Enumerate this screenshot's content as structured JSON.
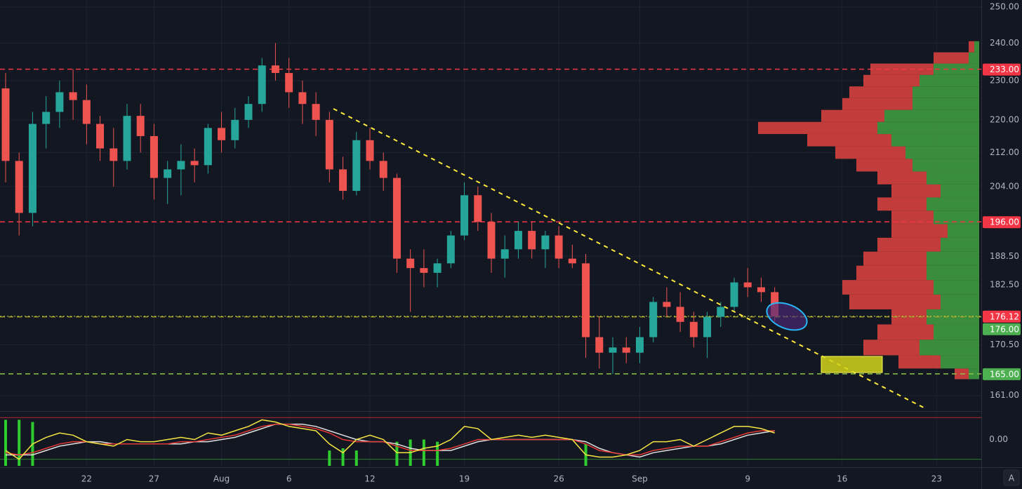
{
  "chart_data": {
    "type": "candlestick",
    "log_scale": true,
    "grid": true,
    "up_color": "#26a69a",
    "down_color": "#ef5350",
    "x": [
      "Jul 16",
      "Jul 17",
      "Jul 18",
      "Jul 19",
      "Jul 20",
      "Jul 21",
      "Jul 22",
      "Jul 23",
      "Jul 24",
      "Jul 25",
      "Jul 26",
      "Jul 27",
      "Jul 28",
      "Jul 29",
      "Jul 30",
      "Jul 31",
      "Aug 1",
      "Aug 2",
      "Aug 3",
      "Aug 4",
      "Aug 5",
      "Aug 6",
      "Aug 7",
      "Aug 8",
      "Aug 9",
      "Aug 10",
      "Aug 11",
      "Aug 12",
      "Aug 13",
      "Aug 14",
      "Aug 15",
      "Aug 16",
      "Aug 17",
      "Aug 18",
      "Aug 19",
      "Aug 20",
      "Aug 21",
      "Aug 22",
      "Aug 23",
      "Aug 24",
      "Aug 25",
      "Aug 26",
      "Aug 27",
      "Aug 28",
      "Aug 29",
      "Aug 30",
      "Aug 31",
      "Sep 1",
      "Sep 2",
      "Sep 3",
      "Sep 4",
      "Sep 5",
      "Sep 6",
      "Sep 7",
      "Sep 8",
      "Sep 9",
      "Sep 10",
      "Sep 11"
    ],
    "open": [
      228,
      210,
      198,
      219,
      222,
      227,
      225,
      219,
      213,
      210,
      221,
      216,
      206,
      208,
      210,
      209,
      218,
      215,
      220,
      224,
      234,
      232,
      227,
      224,
      220,
      208,
      203,
      215,
      210,
      206,
      188,
      186,
      185,
      187,
      193,
      202,
      196,
      188,
      190,
      194,
      190,
      193,
      188,
      187,
      172,
      169,
      170,
      169,
      172,
      179,
      178,
      175,
      172,
      176,
      178,
      183,
      182,
      181
    ],
    "high": [
      232,
      212,
      222,
      226,
      230,
      233,
      229,
      221,
      218,
      224,
      224,
      219,
      210,
      214,
      213,
      219,
      222,
      223,
      226,
      236,
      240,
      236,
      230,
      227,
      222,
      211,
      217,
      218,
      212,
      207,
      190,
      190,
      188,
      194,
      205,
      204,
      198,
      193,
      196,
      196,
      194,
      195,
      191,
      189,
      176,
      172,
      172,
      174,
      180,
      182,
      181,
      177,
      177,
      179,
      184,
      186,
      184,
      182
    ],
    "low": [
      205,
      193,
      195,
      213,
      218,
      220,
      214,
      210,
      204,
      208,
      212,
      201,
      200,
      202,
      205,
      207,
      212,
      213,
      218,
      222,
      230,
      223,
      219,
      216,
      205,
      201,
      202,
      208,
      203,
      185,
      177,
      182,
      182,
      186,
      192,
      194,
      185,
      184,
      188,
      188,
      186,
      186,
      186,
      168,
      166,
      165,
      167,
      167,
      171,
      176,
      173,
      170,
      168,
      174,
      177,
      180,
      179,
      175
    ],
    "close": [
      210,
      198,
      219,
      222,
      227,
      225,
      219,
      213,
      210,
      221,
      216,
      206,
      208,
      210,
      209,
      218,
      215,
      220,
      224,
      234,
      232,
      227,
      224,
      220,
      208,
      203,
      215,
      210,
      206,
      188,
      186,
      185,
      187,
      193,
      202,
      196,
      188,
      190,
      194,
      190,
      193,
      188,
      187,
      172,
      169,
      170,
      169,
      172,
      179,
      178,
      175,
      172,
      176,
      178,
      183,
      182,
      181,
      176.12
    ],
    "xlim": [
      "Jul 16",
      "Sep 26"
    ],
    "xticks": [
      {
        "value": "Jul 22",
        "label": "22"
      },
      {
        "value": "Jul 27",
        "label": "27"
      },
      {
        "value": "Aug 1",
        "label": "Aug"
      },
      {
        "value": "Aug 6",
        "label": "6"
      },
      {
        "value": "Aug 12",
        "label": "12"
      },
      {
        "value": "Aug 19",
        "label": "19"
      },
      {
        "value": "Aug 26",
        "label": "26"
      },
      {
        "value": "Sep 1",
        "label": "Sep"
      },
      {
        "value": "Sep 9",
        "label": "9"
      },
      {
        "value": "Sep 16",
        "label": "16"
      },
      {
        "value": "Sep 23",
        "label": "23"
      }
    ],
    "ylim": [
      158.3,
      252
    ],
    "yticks": [
      {
        "value": 250,
        "label": "250.00"
      },
      {
        "value": 240,
        "label": "240.00"
      },
      {
        "value": 230,
        "label": "230.00"
      },
      {
        "value": 220,
        "label": "220.00"
      },
      {
        "value": 212,
        "label": "212.00"
      },
      {
        "value": 204,
        "label": "204.00"
      },
      {
        "value": 188.5,
        "label": "188.50"
      },
      {
        "value": 182.5,
        "label": "182.50"
      },
      {
        "value": 170.5,
        "label": "170.50"
      },
      {
        "value": 161,
        "label": "161.00"
      }
    ],
    "levels": [
      {
        "value": 233,
        "label": "233.00",
        "color": "#f23645",
        "line": "#f23645"
      },
      {
        "value": 196,
        "label": "196.00",
        "color": "#f23645",
        "line": "#f23645"
      },
      {
        "value": 176,
        "label": "176.00",
        "color": "#4caf50",
        "line": "#9e9d24"
      },
      {
        "value": 165,
        "label": "165.00",
        "color": "#4caf50",
        "line": "#8bc34a"
      }
    ],
    "last": {
      "value": 176.12,
      "label": "176.12",
      "color": "#f23645"
    },
    "profile": {
      "xlim": [
        0,
        350
      ],
      "up_color": "#3f9a3f",
      "down_color": "#e0433f",
      "prices": [
        165,
        167,
        170,
        173,
        176,
        179,
        182,
        185,
        188,
        191,
        194,
        197,
        200,
        203,
        206,
        209,
        212,
        215,
        218,
        221,
        224,
        227,
        230,
        233,
        236,
        239
      ],
      "up": [
        15,
        55,
        85,
        65,
        75,
        55,
        65,
        75,
        75,
        55,
        45,
        65,
        75,
        55,
        75,
        95,
        105,
        125,
        145,
        135,
        95,
        95,
        85,
        65,
        15,
        7
      ],
      "down": [
        20,
        60,
        80,
        80,
        50,
        130,
        130,
        100,
        90,
        90,
        80,
        60,
        70,
        70,
        70,
        80,
        100,
        120,
        170,
        90,
        100,
        90,
        80,
        90,
        50,
        8
      ]
    },
    "oscillator": {
      "ylim": [
        -1.2,
        1.2
      ],
      "yticks": [
        {
          "value": 0,
          "label": "0.00"
        }
      ],
      "levels": [
        {
          "value": 1,
          "color": "#b22833"
        },
        {
          "value": -0.9,
          "color": "#2e7d32"
        }
      ],
      "series": [
        {
          "color": "#f5e642",
          "values": [
            -0.5,
            -0.9,
            -0.2,
            0.1,
            0.3,
            0.2,
            -0.1,
            -0.2,
            -0.3,
            0.0,
            -0.1,
            -0.1,
            0.0,
            0.1,
            0.0,
            0.3,
            0.2,
            0.4,
            0.6,
            0.9,
            0.8,
            0.6,
            0.5,
            0.4,
            -0.2,
            -0.6,
            0.0,
            0.2,
            0.0,
            -0.6,
            -0.6,
            -0.4,
            -0.3,
            0.0,
            0.6,
            0.5,
            0.0,
            0.1,
            0.2,
            0.1,
            0.2,
            0.1,
            0.0,
            -0.7,
            -0.8,
            -0.8,
            -0.7,
            -0.5,
            -0.1,
            -0.1,
            0.0,
            -0.3,
            0.0,
            0.3,
            0.6,
            0.6,
            0.5,
            0.3
          ]
        },
        {
          "color": "#e53935",
          "values": [
            -0.6,
            -0.7,
            -0.6,
            -0.4,
            -0.2,
            -0.1,
            -0.1,
            -0.2,
            -0.2,
            -0.2,
            -0.2,
            -0.2,
            -0.2,
            -0.1,
            -0.1,
            0.0,
            0.1,
            0.2,
            0.4,
            0.6,
            0.7,
            0.7,
            0.6,
            0.5,
            0.3,
            0.0,
            -0.1,
            -0.1,
            -0.1,
            -0.3,
            -0.5,
            -0.5,
            -0.5,
            -0.4,
            -0.2,
            0.0,
            0.0,
            0.0,
            0.0,
            0.0,
            0.0,
            0.0,
            0.0,
            -0.2,
            -0.5,
            -0.6,
            -0.7,
            -0.7,
            -0.5,
            -0.4,
            -0.3,
            -0.3,
            -0.3,
            -0.1,
            0.1,
            0.3,
            0.4,
            0.4
          ]
        },
        {
          "color": "#e0e0e0",
          "values": [
            -0.7,
            -0.7,
            -0.7,
            -0.5,
            -0.3,
            -0.2,
            -0.1,
            -0.1,
            -0.2,
            -0.2,
            -0.2,
            -0.2,
            -0.2,
            -0.2,
            -0.1,
            -0.1,
            0.0,
            0.1,
            0.3,
            0.5,
            0.7,
            0.7,
            0.7,
            0.6,
            0.4,
            0.2,
            0.0,
            -0.1,
            -0.1,
            -0.2,
            -0.4,
            -0.5,
            -0.5,
            -0.5,
            -0.3,
            -0.1,
            0.0,
            0.0,
            0.0,
            0.0,
            0.0,
            0.0,
            0.0,
            -0.1,
            -0.4,
            -0.6,
            -0.7,
            -0.8,
            -0.6,
            -0.5,
            -0.4,
            -0.3,
            -0.3,
            -0.2,
            0.0,
            0.2,
            0.3,
            0.4
          ]
        }
      ],
      "histogram": {
        "color": "#2ecc2e",
        "values": [
          0.9,
          0.9,
          0.8,
          null,
          null,
          null,
          null,
          null,
          null,
          null,
          null,
          null,
          null,
          null,
          null,
          null,
          null,
          null,
          null,
          null,
          null,
          null,
          null,
          null,
          -0.5,
          -0.4,
          -0.5,
          null,
          null,
          -0.1,
          0.0,
          0.0,
          -0.1,
          null,
          null,
          null,
          null,
          null,
          null,
          null,
          null,
          null,
          null,
          -0.2,
          null,
          null,
          null,
          null,
          null,
          null,
          null,
          null,
          null,
          null,
          null,
          null,
          null,
          null
        ]
      }
    }
  },
  "auto_button": "A"
}
